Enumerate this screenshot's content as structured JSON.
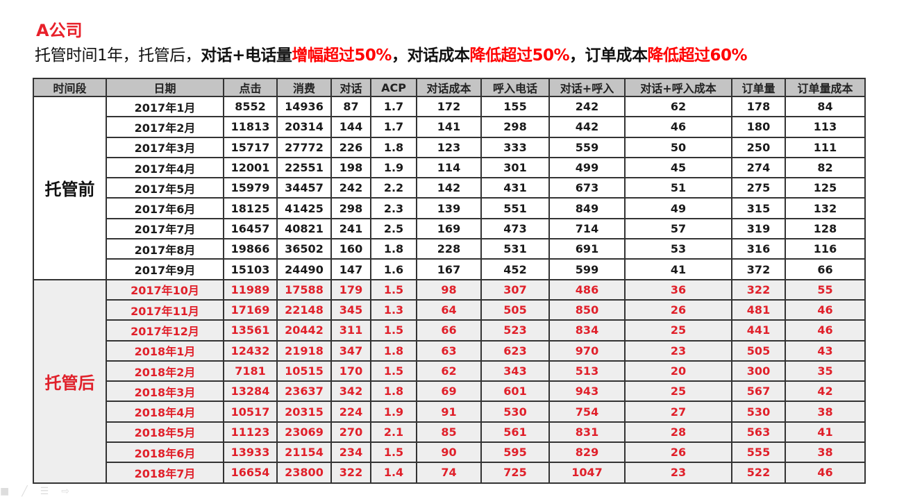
{
  "company": "A公司",
  "subtitle": {
    "p1": "托管时间1年，托管后，",
    "p2": "对话+电话量",
    "p3": "增幅超过50%",
    "p4": "，",
    "p5": "对话成本",
    "p6": "降低超过50%",
    "p7": "，",
    "p8": "订单成本",
    "p9": "降低超过60%"
  },
  "colors": {
    "accent_red": "#ff0000",
    "header_bg": "#c4c4c4",
    "after_bg": "#eeeeee"
  },
  "table": {
    "headers": [
      "时间段",
      "日期",
      "点击",
      "消费",
      "对话",
      "ACP",
      "对话成本",
      "呼入电话",
      "对话+呼入",
      "对话+呼入成本",
      "订单量",
      "订单量成本"
    ],
    "groups": [
      {
        "label": "托管前",
        "style": "before",
        "rows": [
          [
            "2017年1月",
            "8552",
            "14936",
            "87",
            "1.7",
            "172",
            "155",
            "242",
            "62",
            "178",
            "84"
          ],
          [
            "2017年2月",
            "11813",
            "20314",
            "144",
            "1.7",
            "141",
            "298",
            "442",
            "46",
            "180",
            "113"
          ],
          [
            "2017年3月",
            "15717",
            "27772",
            "226",
            "1.8",
            "123",
            "333",
            "559",
            "50",
            "250",
            "111"
          ],
          [
            "2017年4月",
            "12001",
            "22551",
            "198",
            "1.9",
            "114",
            "301",
            "499",
            "45",
            "274",
            "82"
          ],
          [
            "2017年5月",
            "15979",
            "34457",
            "242",
            "2.2",
            "142",
            "431",
            "673",
            "51",
            "275",
            "125"
          ],
          [
            "2017年6月",
            "18125",
            "41425",
            "298",
            "2.3",
            "139",
            "551",
            "849",
            "49",
            "315",
            "132"
          ],
          [
            "2017年7月",
            "16457",
            "40821",
            "241",
            "2.5",
            "169",
            "473",
            "714",
            "57",
            "319",
            "128"
          ],
          [
            "2017年8月",
            "19866",
            "36502",
            "160",
            "1.8",
            "228",
            "531",
            "691",
            "53",
            "316",
            "116"
          ],
          [
            "2017年9月",
            "15103",
            "24490",
            "147",
            "1.6",
            "167",
            "452",
            "599",
            "41",
            "372",
            "66"
          ]
        ]
      },
      {
        "label": "托管后",
        "style": "after",
        "rows": [
          [
            "2017年10月",
            "11989",
            "17588",
            "179",
            "1.5",
            "98",
            "307",
            "486",
            "36",
            "322",
            "55"
          ],
          [
            "2017年11月",
            "17169",
            "22148",
            "345",
            "1.3",
            "64",
            "505",
            "850",
            "26",
            "481",
            "46"
          ],
          [
            "2017年12月",
            "13561",
            "20442",
            "311",
            "1.5",
            "66",
            "523",
            "834",
            "25",
            "441",
            "46"
          ],
          [
            "2018年1月",
            "12432",
            "21918",
            "347",
            "1.8",
            "63",
            "623",
            "970",
            "23",
            "505",
            "43"
          ],
          [
            "2018年2月",
            "7181",
            "10515",
            "170",
            "1.5",
            "62",
            "343",
            "513",
            "20",
            "300",
            "35"
          ],
          [
            "2018年3月",
            "13284",
            "23637",
            "342",
            "1.8",
            "69",
            "601",
            "943",
            "25",
            "567",
            "42"
          ],
          [
            "2018年4月",
            "10517",
            "20315",
            "224",
            "1.9",
            "91",
            "530",
            "754",
            "27",
            "530",
            "38"
          ],
          [
            "2018年5月",
            "11123",
            "23069",
            "270",
            "2.1",
            "85",
            "561",
            "831",
            "28",
            "563",
            "41"
          ],
          [
            "2018年6月",
            "13933",
            "21154",
            "234",
            "1.5",
            "90",
            "595",
            "829",
            "26",
            "555",
            "38"
          ],
          [
            "2018年7月",
            "16654",
            "23800",
            "322",
            "1.4",
            "74",
            "725",
            "1047",
            "23",
            "522",
            "46"
          ]
        ]
      }
    ]
  },
  "toolbar_icons": [
    "pointer-icon",
    "pen-icon",
    "menu-icon",
    "arrow-right-icon"
  ]
}
